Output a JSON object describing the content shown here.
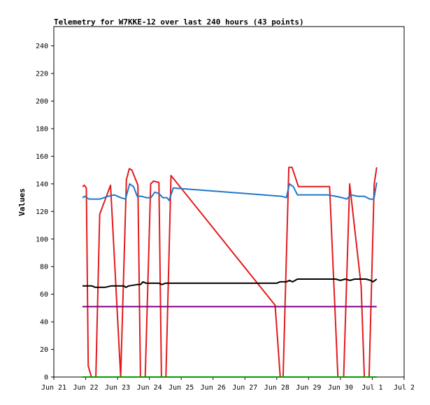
{
  "chart_data": {
    "type": "line",
    "title": "Telemetry for W7KKE-12 over last 240 hours (43 points)",
    "ylabel": "Values",
    "xlabel": "",
    "ylim": [
      0,
      254
    ],
    "yticks": [
      0,
      20,
      40,
      60,
      80,
      100,
      120,
      140,
      160,
      180,
      200,
      220,
      240
    ],
    "xlim": [
      0,
      11
    ],
    "xticks": [
      {
        "label": "Jun 21",
        "value": 0
      },
      {
        "label": "Jun 22",
        "value": 1
      },
      {
        "label": "Jun 23",
        "value": 2
      },
      {
        "label": "Jun 24",
        "value": 3
      },
      {
        "label": "Jun 25",
        "value": 4
      },
      {
        "label": "Jun 26",
        "value": 5
      },
      {
        "label": "Jun 27",
        "value": 6
      },
      {
        "label": "Jun 28",
        "value": 7
      },
      {
        "label": "Jun 29",
        "value": 8
      },
      {
        "label": "Jun 30",
        "value": 9
      },
      {
        "label": "Jul 1",
        "value": 10
      },
      {
        "label": "Jul 2",
        "value": 11
      }
    ],
    "grid": false,
    "series": [
      {
        "color": "#e31a1c",
        "points": [
          [
            0.9,
            138
          ],
          [
            0.96,
            139
          ],
          [
            1.02,
            137
          ],
          [
            1.08,
            8
          ],
          [
            1.18,
            0
          ],
          [
            1.32,
            0
          ],
          [
            1.44,
            118
          ],
          [
            1.78,
            139
          ],
          [
            2.1,
            0
          ],
          [
            2.28,
            143
          ],
          [
            2.37,
            151
          ],
          [
            2.45,
            150
          ],
          [
            2.64,
            139
          ],
          [
            2.72,
            0
          ],
          [
            2.87,
            0
          ],
          [
            3.04,
            140
          ],
          [
            3.13,
            142
          ],
          [
            3.3,
            141
          ],
          [
            3.38,
            0
          ],
          [
            3.52,
            0
          ],
          [
            3.68,
            146
          ],
          [
            6.95,
            52
          ],
          [
            7.11,
            0
          ],
          [
            7.2,
            0
          ],
          [
            7.38,
            152
          ],
          [
            7.48,
            152
          ],
          [
            7.68,
            138
          ],
          [
            8.66,
            138
          ],
          [
            8.92,
            0
          ],
          [
            9.1,
            0
          ],
          [
            9.29,
            140
          ],
          [
            9.65,
            66
          ],
          [
            9.75,
            0
          ],
          [
            9.9,
            0
          ],
          [
            10.06,
            140
          ],
          [
            10.14,
            152
          ]
        ]
      },
      {
        "color": "#1f78c8",
        "points": [
          [
            0.9,
            130
          ],
          [
            0.97,
            131
          ],
          [
            1.1,
            129
          ],
          [
            1.25,
            129
          ],
          [
            1.45,
            129
          ],
          [
            1.7,
            131
          ],
          [
            1.9,
            132
          ],
          [
            2.1,
            130
          ],
          [
            2.25,
            129
          ],
          [
            2.38,
            140
          ],
          [
            2.5,
            138
          ],
          [
            2.62,
            131
          ],
          [
            2.75,
            131
          ],
          [
            2.9,
            130
          ],
          [
            3.05,
            130
          ],
          [
            3.17,
            134
          ],
          [
            3.3,
            133
          ],
          [
            3.42,
            130
          ],
          [
            3.55,
            130
          ],
          [
            3.62,
            128
          ],
          [
            3.75,
            137
          ],
          [
            7.15,
            131
          ],
          [
            7.3,
            130
          ],
          [
            7.4,
            140
          ],
          [
            7.52,
            138
          ],
          [
            7.65,
            132
          ],
          [
            8.6,
            132
          ],
          [
            8.85,
            131
          ],
          [
            9.05,
            130
          ],
          [
            9.2,
            129
          ],
          [
            9.32,
            132
          ],
          [
            9.55,
            131
          ],
          [
            9.75,
            131
          ],
          [
            9.92,
            129
          ],
          [
            10.05,
            129
          ],
          [
            10.14,
            141
          ]
        ]
      },
      {
        "color": "#000000",
        "points": [
          [
            0.9,
            66
          ],
          [
            1.2,
            66
          ],
          [
            1.3,
            65
          ],
          [
            1.6,
            65
          ],
          [
            1.8,
            66
          ],
          [
            2.2,
            66
          ],
          [
            2.26,
            65
          ],
          [
            2.35,
            66
          ],
          [
            2.62,
            67
          ],
          [
            2.72,
            67
          ],
          [
            2.8,
            69
          ],
          [
            2.9,
            68
          ],
          [
            3.3,
            68
          ],
          [
            3.4,
            67
          ],
          [
            3.5,
            68
          ],
          [
            6.75,
            68
          ],
          [
            7.0,
            68
          ],
          [
            7.1,
            69
          ],
          [
            7.3,
            69
          ],
          [
            7.4,
            70
          ],
          [
            7.5,
            69
          ],
          [
            7.65,
            71
          ],
          [
            8.7,
            71
          ],
          [
            8.85,
            71
          ],
          [
            9.0,
            70
          ],
          [
            9.15,
            71
          ],
          [
            9.3,
            70
          ],
          [
            9.45,
            71
          ],
          [
            9.8,
            71
          ],
          [
            9.95,
            70
          ],
          [
            10.02,
            69
          ],
          [
            10.14,
            71
          ]
        ]
      },
      {
        "color": "#800080",
        "points": [
          [
            0.9,
            51
          ],
          [
            10.14,
            51
          ]
        ]
      },
      {
        "color": "#00a000",
        "points": [
          [
            0.9,
            0
          ],
          [
            10.14,
            0
          ]
        ]
      }
    ]
  }
}
